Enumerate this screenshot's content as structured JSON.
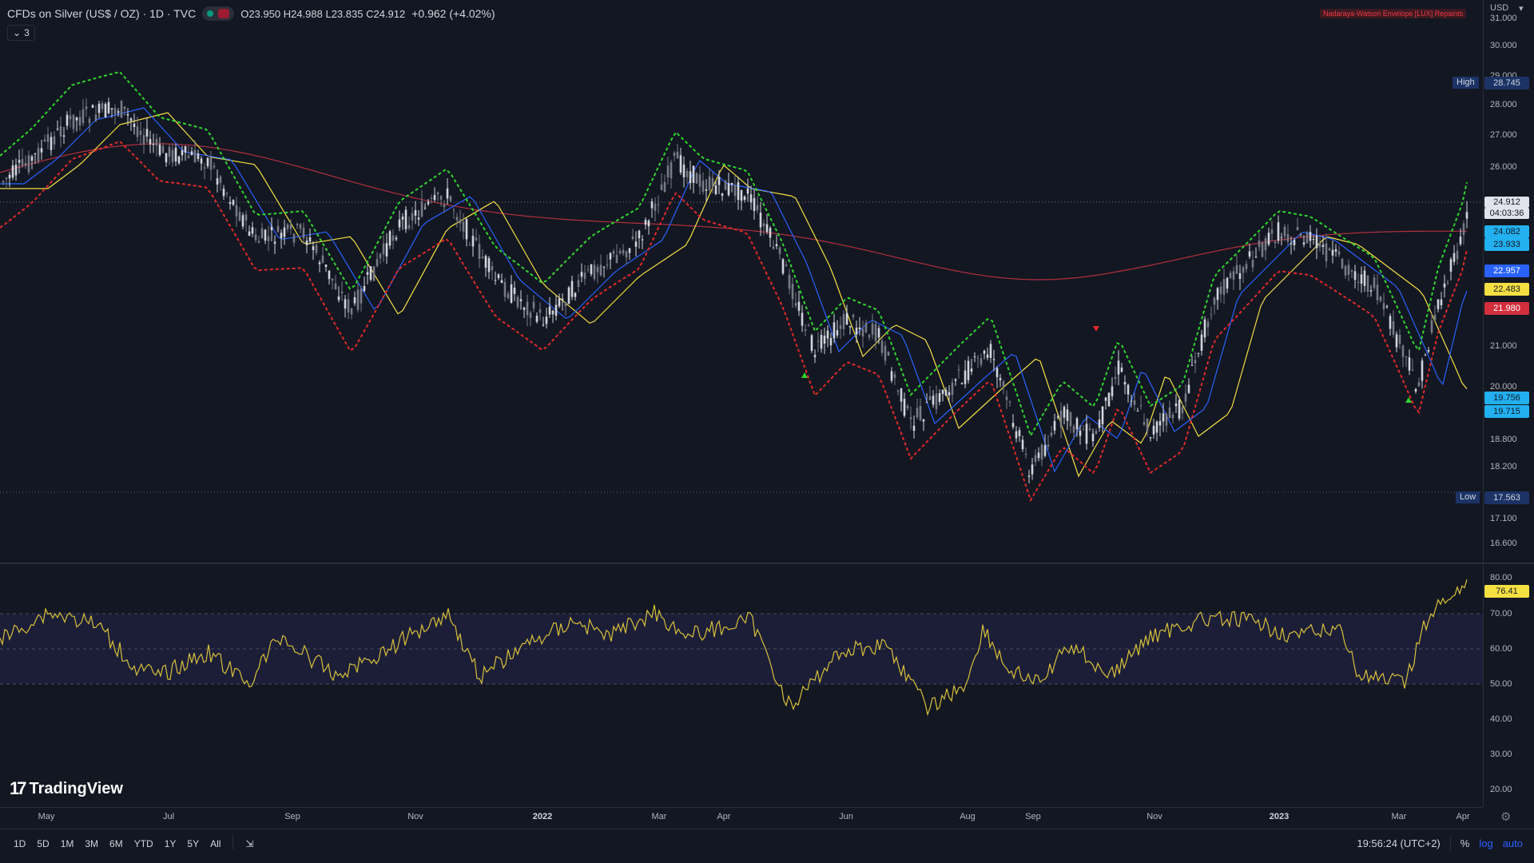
{
  "header": {
    "symbol": "CFDs on Silver (US$ / OZ) · 1D · TVC",
    "ohlc": "O23.950 H24.988 L23.835 C24.912",
    "change": "+0.962 (+4.02%)",
    "collapse_count": "3",
    "indicator_label": "Nadaraya-Watson Envelope [LUX] Repaints"
  },
  "price_axis": {
    "currency": "USD",
    "ticks": [
      "31.000",
      "30.000",
      "29.000",
      "28.000",
      "27.000",
      "26.000",
      "21.000",
      "20.000",
      "18.800",
      "18.200",
      "17.100",
      "16.600"
    ],
    "tags": {
      "high_label": "High",
      "high_value": "28.745",
      "last_price": "24.912",
      "countdown": "04:03:36",
      "ma_fast_1": "24.082",
      "ma_fast_2": "23.933",
      "ma_blue": "22.957",
      "ma_yellow": "22.483",
      "ma_red": "21.980",
      "lower_1": "19.756",
      "lower_2": "19.715",
      "low_label": "Low",
      "low_value": "17.563"
    }
  },
  "rsi_axis": {
    "ticks": [
      "80.00",
      "70.00",
      "60.00",
      "50.00",
      "40.00",
      "30.00",
      "20.00"
    ],
    "value": "76.41"
  },
  "time_axis": {
    "labels": [
      "May",
      "Jul",
      "Sep",
      "Nov",
      "2022",
      "Mar",
      "Apr",
      "Jun",
      "Aug",
      "Sep",
      "Nov",
      "2023",
      "Mar",
      "Apr"
    ]
  },
  "bottom_bar": {
    "ranges": [
      "1D",
      "5D",
      "1M",
      "3M",
      "6M",
      "YTD",
      "1Y",
      "5Y",
      "All"
    ],
    "clock": "19:56:24 (UTC+2)",
    "percent": "%",
    "log": "log",
    "auto": "auto"
  },
  "branding": {
    "logo_text": "TradingView"
  },
  "colors": {
    "background": "#131722",
    "up_candle": "#d1d4dc",
    "down_candle": "#787b86",
    "ma_blue": "#2962ff",
    "ma_yellow": "#f5e042",
    "ma_red": "#b2303f",
    "envelope_upper": "#2fd42f",
    "envelope_lower": "#e02a2a",
    "rsi_line": "#d8c03a",
    "rsi_band": "#1e1f3b",
    "tag_cyan": "#22b0f0",
    "tag_blue": "#2962ff",
    "tag_yellow": "#f5e042",
    "tag_red": "#d32f3c"
  }
}
